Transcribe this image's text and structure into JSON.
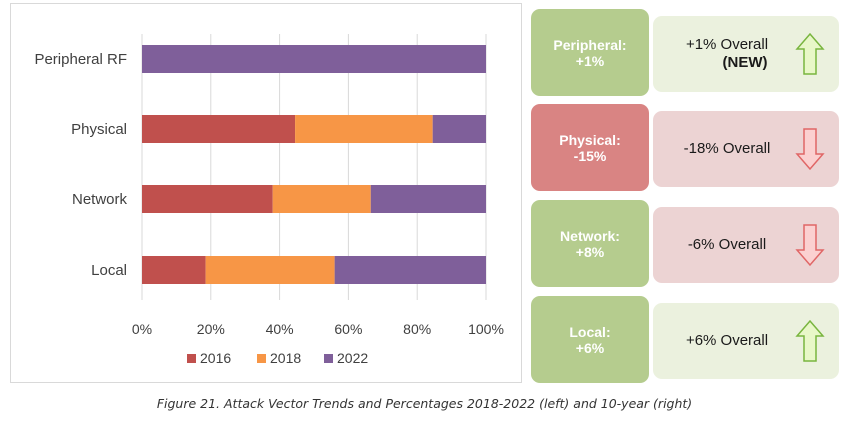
{
  "chart_data": {
    "type": "bar",
    "stacked": "percent",
    "orientation": "horizontal",
    "categories": [
      "Peripheral RF",
      "Physical",
      "Network",
      "Local"
    ],
    "series": [
      {
        "name": "2016",
        "color": "#c0504d",
        "values": [
          0,
          44.5,
          38,
          18.5
        ]
      },
      {
        "name": "2018",
        "color": "#f79646",
        "values": [
          0,
          40,
          28.5,
          37.5
        ]
      },
      {
        "name": "2022",
        "color": "#7f5f9a",
        "values": [
          100,
          15.5,
          33.5,
          44
        ]
      }
    ],
    "xticks": [
      "0%",
      "20%",
      "40%",
      "60%",
      "80%",
      "100%"
    ],
    "xlim": [
      0,
      100
    ],
    "legend_position": "bottom",
    "grid": true
  },
  "panel": {
    "rows": [
      {
        "left_label": "Peripheral:",
        "left_value": "+1%",
        "left_color": "#b5cc8e",
        "right_line1": "+1% Overall",
        "right_line2": "(NEW)",
        "right_bg": "#ebf1de",
        "arrow": "up-arrow-icon"
      },
      {
        "left_label": "Physical:",
        "left_value": "-15%",
        "left_color": "#d98483",
        "right_line1": "-18% Overall",
        "right_line2": "",
        "right_bg": "#ecd3d3",
        "arrow": "down-arrow-icon"
      },
      {
        "left_label": "Network:",
        "left_value": "+8%",
        "left_color": "#b5cc8e",
        "right_line1": "-6% Overall",
        "right_line2": "",
        "right_bg": "#ecd3d3",
        "arrow": "down-arrow-icon"
      },
      {
        "left_label": "Local:",
        "left_value": "+6%",
        "left_color": "#b5cc8e",
        "right_line1": "+6% Overall",
        "right_line2": "",
        "right_bg": "#ebf1de",
        "arrow": "up-arrow-icon"
      }
    ]
  },
  "caption": "Figure 21. Attack Vector Trends and Percentages 2018-2022 (left) and 10-year (right)"
}
